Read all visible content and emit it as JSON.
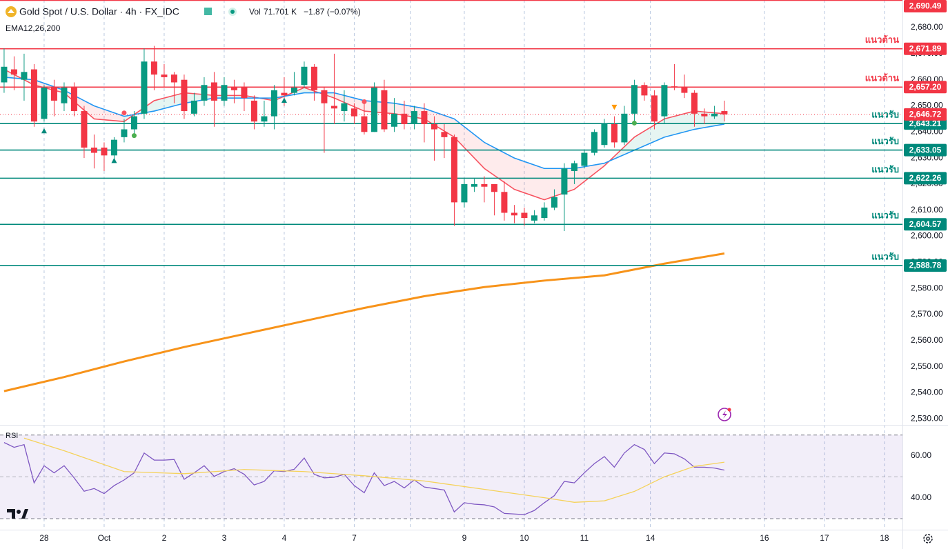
{
  "header": {
    "title": "Gold Spot / U.S. Dollar · 4h · FX_IDC",
    "vol_label": "Vol",
    "vol": "71.701 K",
    "change": "−1.87 (−0.07%)",
    "indicator": "EMA12,26,200"
  },
  "chart_data": [
    {
      "type": "candlestick",
      "x": [
        0,
        1,
        2,
        3,
        4,
        5,
        6,
        7,
        8,
        9,
        10,
        11,
        12,
        13,
        14,
        15,
        16,
        17,
        18,
        19,
        20,
        21,
        22,
        23,
        24,
        25,
        26,
        27,
        28,
        29,
        30,
        31,
        32,
        33,
        34,
        35,
        36,
        37,
        38,
        39,
        40,
        41,
        42,
        43,
        44,
        45,
        46,
        47,
        48,
        49,
        50,
        51,
        52,
        53,
        54,
        55,
        56,
        57,
        58,
        59,
        60,
        61,
        62,
        63,
        64,
        65,
        66,
        67,
        68,
        69,
        70,
        71,
        72
      ],
      "open": [
        2659,
        2664,
        2660,
        2664,
        2645,
        2657,
        2651,
        2657,
        2648,
        2634,
        2634,
        2631,
        2638,
        2641,
        2647,
        2667,
        2662,
        2662,
        2660,
        2647,
        2652,
        2659,
        2652,
        2657,
        2657,
        2652,
        2644,
        2646,
        2655,
        2655,
        2658,
        2665,
        2656,
        2650,
        2648,
        2649,
        2646,
        2640,
        2656,
        2642,
        2647,
        2643,
        2648,
        2643,
        2640,
        2638,
        2613,
        2619,
        2620,
        2620,
        2617,
        2609,
        2609,
        2606,
        2607,
        2611,
        2616,
        2625,
        2627,
        2632,
        2635,
        2643,
        2636,
        2647,
        2658,
        2654,
        2646,
        2657.5,
        2657,
        2655,
        2647,
        2646,
        2648
      ],
      "high": [
        2672,
        2669,
        2670,
        2666,
        2658,
        2660,
        2659,
        2659,
        2650,
        2639,
        2636,
        2638,
        2645,
        2648,
        2672,
        2673,
        2666,
        2663,
        2662,
        2655,
        2661,
        2663,
        2661,
        2660,
        2659,
        2654,
        2652,
        2658,
        2661,
        2663,
        2667,
        2666,
        2657,
        2670,
        2656,
        2651,
        2652,
        2659,
        2660,
        2653,
        2652,
        2650,
        2651,
        2646,
        2643,
        2639,
        2622,
        2622,
        2623,
        2620,
        2621,
        2612,
        2611,
        2610,
        2613,
        2618,
        2628,
        2629,
        2633,
        2641,
        2645,
        2646,
        2650,
        2660,
        2659,
        2656,
        2659,
        2666,
        2662,
        2656,
        2649,
        2650,
        2652
      ],
      "low": [
        2655,
        2656,
        2652,
        2642,
        2644,
        2646,
        2648,
        2646,
        2630,
        2626,
        2625,
        2629,
        2636,
        2638,
        2645,
        2656,
        2657,
        2651,
        2645,
        2646,
        2650,
        2642,
        2650,
        2651,
        2648,
        2641,
        2642,
        2641,
        2650,
        2654,
        2657,
        2652,
        2632,
        2643,
        2644,
        2643,
        2639,
        2640,
        2640,
        2640,
        2641,
        2641,
        2636,
        2629,
        2630,
        2604,
        2611,
        2617,
        2613,
        2608,
        2606,
        2605,
        2604,
        2605,
        2606,
        2610,
        2602,
        2620,
        2626,
        2631,
        2634,
        2634,
        2635,
        2643,
        2652,
        2641,
        2643,
        2656,
        2653,
        2642,
        2643,
        2645,
        2644
      ],
      "close": [
        2665,
        2662,
        2663,
        2644,
        2657,
        2652,
        2657,
        2648,
        2634,
        2632,
        2631,
        2637,
        2641,
        2646,
        2667,
        2662,
        2661,
        2659,
        2648,
        2652,
        2658,
        2652,
        2658,
        2656,
        2653,
        2644,
        2646,
        2656,
        2654,
        2657,
        2665,
        2656,
        2651,
        2649,
        2651,
        2646,
        2640,
        2657,
        2641,
        2647,
        2643,
        2648,
        2643,
        2641,
        2638,
        2613,
        2620,
        2620,
        2619,
        2617,
        2609,
        2608,
        2607,
        2608,
        2611,
        2615,
        2626,
        2628,
        2632,
        2640,
        2643,
        2636,
        2647,
        2658,
        2654,
        2644,
        2658,
        2657,
        2655,
        2647,
        2646,
        2647,
        2646.72
      ],
      "up_color": "#089981",
      "down_color": "#f23645",
      "xlim": [
        -0.41,
        89.8
      ],
      "xticks": [
        {
          "value": 4,
          "label": "28"
        },
        {
          "value": 10,
          "label": "Oct"
        },
        {
          "value": 16,
          "label": "2"
        },
        {
          "value": 22,
          "label": "3"
        },
        {
          "value": 28,
          "label": "4"
        },
        {
          "value": 35,
          "label": "7"
        },
        {
          "value": 40.6,
          "label": null
        },
        {
          "value": 46,
          "label": "9"
        },
        {
          "value": 52,
          "label": "10"
        },
        {
          "value": 58,
          "label": "11"
        },
        {
          "value": 64.6,
          "label": "14"
        },
        {
          "value": 76,
          "label": "16"
        },
        {
          "value": 82,
          "label": "17"
        },
        {
          "value": 88,
          "label": "18"
        }
      ],
      "ylim": [
        2528.2,
        2690.6
      ],
      "yticks": [
        {
          "value": 2530,
          "label": "2,530.00"
        },
        {
          "value": 2540,
          "label": "2,540.00"
        },
        {
          "value": 2550,
          "label": "2,550.00"
        },
        {
          "value": 2560,
          "label": "2,560.00"
        },
        {
          "value": 2570,
          "label": "2,570.00"
        },
        {
          "value": 2580,
          "label": "2,580.00"
        },
        {
          "value": 2590,
          "label": "2,590.00"
        },
        {
          "value": 2600,
          "label": "2,600.00"
        },
        {
          "value": 2610,
          "label": "2,610.00"
        },
        {
          "value": 2620,
          "label": "2,620.00"
        },
        {
          "value": 2630,
          "label": "2,630.00"
        },
        {
          "value": 2640,
          "label": "2,640.00"
        },
        {
          "value": 2650,
          "label": "2,650.00"
        },
        {
          "value": 2660,
          "label": "2,660.00"
        },
        {
          "value": 2670,
          "label": "2,670.00"
        },
        {
          "value": 2680,
          "label": "2,680.00"
        }
      ],
      "grid": "x",
      "series": [
        {
          "color": "#f7525f",
          "x": [
            0,
            3,
            6,
            9,
            12,
            15,
            18,
            21,
            24,
            27,
            30,
            33,
            36,
            39,
            42,
            45,
            48,
            51,
            54,
            57,
            60,
            63,
            66,
            69,
            72
          ],
          "values": [
            2664,
            2658,
            2655,
            2645,
            2644,
            2652,
            2655,
            2654,
            2654,
            2652,
            2657,
            2653,
            2648,
            2647,
            2645,
            2638,
            2626,
            2618,
            2614,
            2618,
            2627,
            2638,
            2645,
            2648,
            2647
          ]
        },
        {
          "color": "#2196f3",
          "x": [
            0,
            3,
            6,
            9,
            12,
            15,
            18,
            21,
            24,
            27,
            30,
            33,
            36,
            39,
            42,
            45,
            48,
            51,
            54,
            57,
            60,
            63,
            66,
            69,
            72
          ],
          "values": [
            2661,
            2660,
            2656,
            2650,
            2646,
            2648,
            2651,
            2653,
            2653,
            2653,
            2655,
            2655,
            2652,
            2651,
            2649,
            2645,
            2636,
            2630,
            2626,
            2626,
            2628,
            2633,
            2638,
            2641,
            2643
          ]
        },
        {
          "color": "#f7931a",
          "x": [
            0,
            6,
            12,
            18,
            24,
            30,
            36,
            42,
            48,
            54,
            60,
            66,
            72
          ],
          "values": [
            2540.6,
            2546,
            2552,
            2557.5,
            2562.5,
            2567.5,
            2572.5,
            2577,
            2580.5,
            2583,
            2585,
            2589.5,
            2593.4
          ]
        }
      ],
      "fill_up": "rgba(8,153,129,0.10)",
      "fill_down": "rgba(242,54,69,0.10)",
      "levels": [
        {
          "value": 2690.49,
          "label": "2,690.49",
          "color": "#f23645",
          "note": null
        },
        {
          "value": 2671.89,
          "label": "2,671.89",
          "color": "#f23645",
          "note": "แนวต้าน"
        },
        {
          "value": 2657.2,
          "label": "2,657.20",
          "color": "#f23645",
          "note": "แนวต้าน"
        },
        {
          "value": 2643.21,
          "label": "2,643.21",
          "color": "#00897b",
          "note": "แนวรับ"
        },
        {
          "value": 2633.05,
          "label": "2,633.05",
          "color": "#00897b",
          "note": "แนวรับ"
        },
        {
          "value": 2622.26,
          "label": "2,622.26",
          "color": "#00897b",
          "note": "แนวรับ"
        },
        {
          "value": 2604.57,
          "label": "2,604.57",
          "color": "#00897b",
          "note": "แนวรับ"
        },
        {
          "value": 2588.78,
          "label": "2,588.78",
          "color": "#00897b",
          "note": "แนวรับ"
        }
      ],
      "last_price": {
        "value": 2646.72,
        "label": "2,646.72",
        "color": "#f23645"
      },
      "markers": [
        {
          "x": 4,
          "value": 2640.4,
          "shape": "triangle-up",
          "color": "#00897b"
        },
        {
          "x": 11,
          "value": 2629,
          "shape": "triangle-up",
          "color": "#00897b"
        },
        {
          "x": 28,
          "value": 2652.1,
          "shape": "triangle-up",
          "color": "#00897b"
        },
        {
          "x": 13,
          "value": 2638.6,
          "shape": "dot",
          "color": "#4caf50"
        },
        {
          "x": 63,
          "value": 2643.4,
          "shape": "dot",
          "color": "#4caf50"
        },
        {
          "x": 12,
          "value": 2647.3,
          "shape": "dot",
          "color": "#f7525f"
        },
        {
          "x": 36,
          "value": 2651.6,
          "shape": "dot",
          "color": "#f7525f"
        },
        {
          "x": 61,
          "value": 2649.5,
          "shape": "triangle-down",
          "color": "#ff9800"
        }
      ]
    },
    {
      "type": "line",
      "title": "RSI",
      "xlim": [
        -0.41,
        89.8
      ],
      "ylim": [
        24.7,
        74.2
      ],
      "yticks": [
        {
          "value": 40,
          "label": "40.00"
        },
        {
          "value": 60,
          "label": "60.00"
        }
      ],
      "bands": [
        30,
        70
      ],
      "midline": 50,
      "band_fill": "rgba(126,87,194,0.10)",
      "series": [
        {
          "color": "#7e57c2",
          "x": [
            0,
            1,
            2,
            3,
            4,
            5,
            6,
            7,
            8,
            9,
            10,
            11,
            12,
            13,
            14,
            15,
            16,
            17,
            18,
            19,
            20,
            21,
            22,
            23,
            24,
            25,
            26,
            27,
            28,
            29,
            30,
            31,
            32,
            33,
            34,
            35,
            36,
            37,
            38,
            39,
            40,
            41,
            42,
            43,
            44,
            45,
            46,
            47,
            48,
            49,
            50,
            51,
            52,
            53,
            54,
            55,
            56,
            57,
            58,
            59,
            60,
            61,
            62,
            63,
            64,
            65,
            66,
            67,
            68,
            69,
            70,
            71,
            72
          ],
          "values": [
            66.4,
            64.1,
            65.4,
            47.1,
            55.3,
            51.9,
            55.3,
            49.5,
            43.1,
            44.4,
            42.0,
            45.8,
            48.5,
            51.9,
            61.4,
            58.0,
            58.0,
            58.3,
            48.8,
            51.9,
            55.3,
            50.2,
            52.5,
            53.9,
            51.2,
            46.1,
            47.8,
            52.9,
            52.5,
            53.6,
            59.0,
            51.2,
            49.5,
            49.8,
            51.2,
            45.8,
            42.4,
            51.9,
            45.8,
            47.8,
            44.7,
            48.5,
            45.1,
            44.4,
            43.7,
            33.2,
            37.6,
            36.9,
            36.6,
            35.6,
            32.5,
            32.2,
            31.9,
            33.9,
            37.6,
            41.0,
            47.8,
            47.1,
            51.9,
            56.3,
            59.7,
            54.6,
            61.4,
            65.4,
            63.1,
            56.3,
            61.4,
            61.0,
            58.6,
            54.6,
            54.6,
            54.2,
            53.2
          ]
        },
        {
          "color": "#f5d25a",
          "x": [
            2,
            6,
            12,
            18,
            24,
            30,
            36,
            42,
            48,
            54,
            57,
            60,
            63,
            66,
            69,
            72
          ],
          "values": [
            68.5,
            62.5,
            52.5,
            51.5,
            53.5,
            52.5,
            50.5,
            48,
            44,
            40,
            37.8,
            38.5,
            43,
            50,
            55,
            57
          ]
        }
      ]
    }
  ]
}
